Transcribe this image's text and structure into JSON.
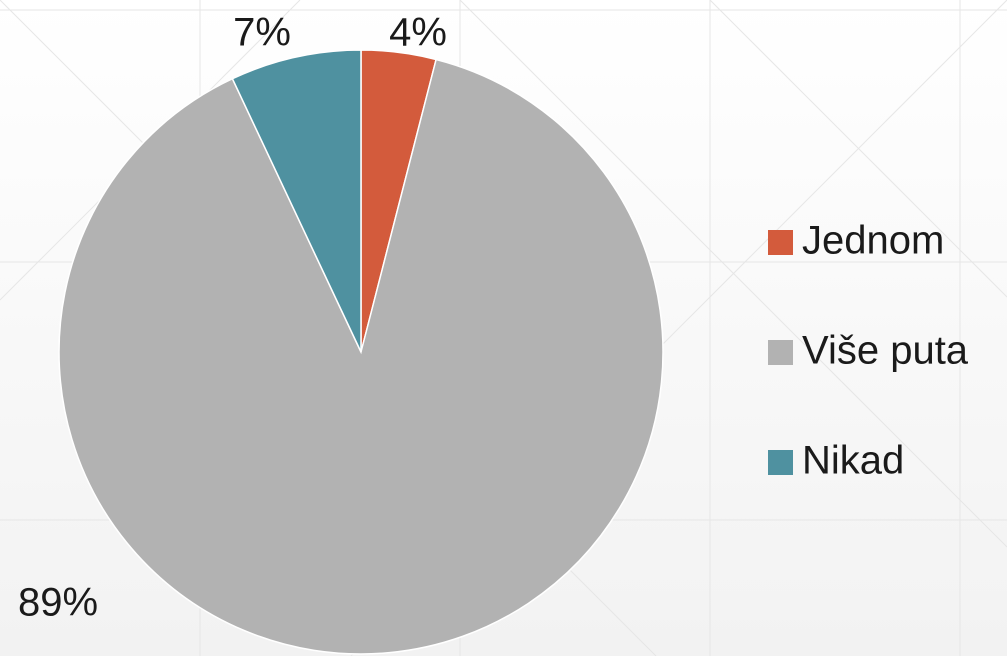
{
  "chart_data": {
    "type": "pie",
    "categories": [
      "Jednom",
      "Više puta",
      "Nikad"
    ],
    "values": [
      4,
      89,
      7
    ],
    "value_labels": [
      "4%",
      "89%",
      "7%"
    ],
    "colors": [
      "#d35b3c",
      "#b2b2b2",
      "#4f91a0"
    ],
    "legend": "right"
  }
}
